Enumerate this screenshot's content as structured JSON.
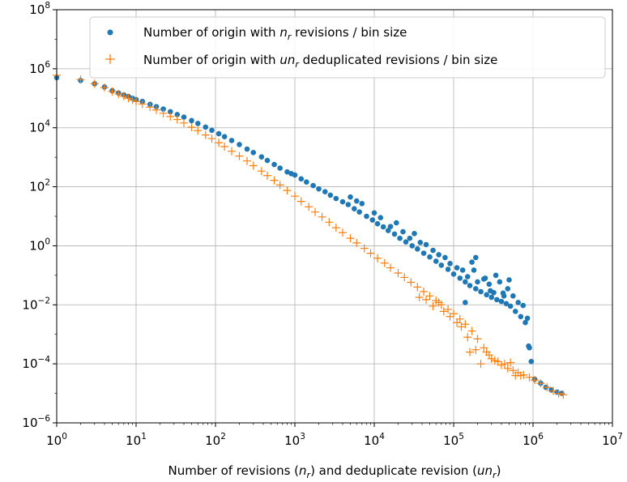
{
  "chart_data": {
    "type": "scatter",
    "xlabel": {
      "pre": "Number of revisions (",
      "var1": "n",
      "sub1": "r",
      "mid": ") and deduplicate revision (",
      "var2": "un",
      "sub2": "r",
      "post": ")"
    },
    "ylabel": "",
    "title": "",
    "x_scale": "log",
    "y_scale": "log",
    "xlim": [
      1,
      10000000
    ],
    "ylim": [
      1e-06,
      100000000
    ],
    "x_ticks": [
      {
        "base": "10",
        "exp": "0"
      },
      {
        "base": "10",
        "exp": "1"
      },
      {
        "base": "10",
        "exp": "2"
      },
      {
        "base": "10",
        "exp": "3"
      },
      {
        "base": "10",
        "exp": "4"
      },
      {
        "base": "10",
        "exp": "5"
      },
      {
        "base": "10",
        "exp": "6"
      },
      {
        "base": "10",
        "exp": "7"
      }
    ],
    "y_ticks": [
      {
        "base": "10",
        "exp": "−6"
      },
      {
        "base": "10",
        "exp": "−4"
      },
      {
        "base": "10",
        "exp": "−2"
      },
      {
        "base": "10",
        "exp": "0"
      },
      {
        "base": "10",
        "exp": "2"
      },
      {
        "base": "10",
        "exp": "4"
      },
      {
        "base": "10",
        "exp": "6"
      },
      {
        "base": "10",
        "exp": "8"
      }
    ],
    "grid": true,
    "legend_position": "top-right",
    "series": [
      {
        "legend": {
          "pre": "Number of origin with ",
          "var": "n",
          "sub": "r",
          "post": " revisions / bin size"
        },
        "marker": "circle",
        "color": "#1f77b4",
        "points": [
          [
            1,
            500000
          ],
          [
            2,
            400000
          ],
          [
            3,
            310000
          ],
          [
            4,
            240000
          ],
          [
            5,
            180000
          ],
          [
            6,
            150000
          ],
          [
            7,
            130000
          ],
          [
            8,
            115000
          ],
          [
            9,
            100000
          ],
          [
            10,
            90000
          ],
          [
            12,
            78000
          ],
          [
            15,
            62000
          ],
          [
            18,
            52000
          ],
          [
            22,
            43000
          ],
          [
            27,
            35000
          ],
          [
            33,
            28000
          ],
          [
            40,
            23000
          ],
          [
            50,
            17500
          ],
          [
            60,
            14000
          ],
          [
            75,
            10500
          ],
          [
            90,
            8200
          ],
          [
            110,
            6300
          ],
          [
            130,
            5000
          ],
          [
            160,
            3700
          ],
          [
            200,
            2700
          ],
          [
            250,
            1900
          ],
          [
            300,
            1450
          ],
          [
            380,
            1030
          ],
          [
            450,
            780
          ],
          [
            550,
            570
          ],
          [
            650,
            430
          ],
          [
            800,
            320
          ],
          [
            900,
            280
          ],
          [
            1000,
            250
          ],
          [
            1200,
            185
          ],
          [
            1400,
            145
          ],
          [
            1700,
            110
          ],
          [
            2000,
            85
          ],
          [
            2400,
            68
          ],
          [
            2800,
            52
          ],
          [
            3300,
            40
          ],
          [
            4000,
            31
          ],
          [
            4700,
            25
          ],
          [
            5600,
            18
          ],
          [
            6500,
            14
          ],
          [
            8000,
            10
          ],
          [
            9500,
            7.5
          ],
          [
            11000,
            5.6
          ],
          [
            13000,
            4.4
          ],
          [
            15000,
            3.3
          ],
          [
            18000,
            2.5
          ],
          [
            21000,
            1.8
          ],
          [
            25000,
            1.35
          ],
          [
            30000,
            1.0
          ],
          [
            35000,
            0.78
          ],
          [
            42000,
            0.56
          ],
          [
            50000,
            0.42
          ],
          [
            60000,
            0.3
          ],
          [
            70000,
            0.22
          ],
          [
            85000,
            0.16
          ],
          [
            100000,
            0.11
          ],
          [
            120000,
            0.08
          ],
          [
            140000,
            0.06
          ],
          [
            160000,
            0.045
          ],
          [
            190000,
            0.035
          ],
          [
            220000,
            0.028
          ],
          [
            260000,
            0.022
          ],
          [
            300000,
            0.018
          ],
          [
            350000,
            0.015
          ],
          [
            400000,
            0.013
          ],
          [
            460000,
            0.011
          ],
          [
            520000,
            0.009
          ],
          [
            600000,
            0.006
          ],
          [
            700000,
            0.004
          ],
          [
            800000,
            0.0025
          ],
          [
            880000,
            0.0004
          ],
          [
            950000,
            0.00012
          ],
          [
            1050000,
            3e-05
          ],
          [
            1250000,
            2.2e-05
          ],
          [
            1450000,
            1.6e-05
          ],
          [
            1700000,
            1.3e-05
          ],
          [
            2000000,
            1.1e-05
          ],
          [
            2300000,
            1e-05
          ],
          [
            5000,
            45
          ],
          [
            6000,
            33
          ],
          [
            7000,
            27
          ],
          [
            10000,
            13
          ],
          [
            12000,
            9
          ],
          [
            16000,
            4.5
          ],
          [
            19000,
            6
          ],
          [
            23000,
            3
          ],
          [
            28000,
            1.8
          ],
          [
            32000,
            2.6
          ],
          [
            38000,
            1.3
          ],
          [
            45000,
            1.1
          ],
          [
            55000,
            0.7
          ],
          [
            65000,
            0.5
          ],
          [
            78000,
            0.4
          ],
          [
            90000,
            0.25
          ],
          [
            110000,
            0.18
          ],
          [
            130000,
            0.15
          ],
          [
            150000,
            0.09
          ],
          [
            170000,
            0.28
          ],
          [
            200000,
            0.06
          ],
          [
            240000,
            0.075
          ],
          [
            280000,
            0.05
          ],
          [
            320000,
            0.026
          ],
          [
            380000,
            0.06
          ],
          [
            430000,
            0.02
          ],
          [
            480000,
            0.035
          ],
          [
            560000,
            0.02
          ],
          [
            650000,
            0.012
          ],
          [
            750000,
            0.0095
          ],
          [
            850000,
            0.0035
          ],
          [
            900000,
            0.00035
          ],
          [
            140000,
            0.012
          ],
          [
            180000,
            0.15
          ],
          [
            190000,
            0.4
          ],
          [
            250000,
            0.08
          ],
          [
            290000,
            0.03
          ],
          [
            340000,
            0.1
          ],
          [
            420000,
            0.025
          ],
          [
            500000,
            0.07
          ]
        ]
      },
      {
        "legend": {
          "pre": "Number of origin with ",
          "var": "un",
          "sub": "r",
          "post": " deduplicated revisions / bin size"
        },
        "marker": "plus",
        "color": "#ff7f0e",
        "points": [
          [
            1,
            600000
          ],
          [
            2,
            430000
          ],
          [
            3,
            310000
          ],
          [
            4,
            230000
          ],
          [
            5,
            170000
          ],
          [
            6,
            140000
          ],
          [
            7,
            118000
          ],
          [
            8,
            100000
          ],
          [
            9,
            88000
          ],
          [
            10,
            78000
          ],
          [
            12,
            64000
          ],
          [
            15,
            50000
          ],
          [
            18,
            40000
          ],
          [
            22,
            31000
          ],
          [
            27,
            24000
          ],
          [
            33,
            19000
          ],
          [
            40,
            14500
          ],
          [
            50,
            10500
          ],
          [
            60,
            8000
          ],
          [
            75,
            5700
          ],
          [
            90,
            4300
          ],
          [
            110,
            3100
          ],
          [
            130,
            2300
          ],
          [
            160,
            1600
          ],
          [
            200,
            1100
          ],
          [
            250,
            750
          ],
          [
            300,
            520
          ],
          [
            380,
            340
          ],
          [
            450,
            240
          ],
          [
            550,
            165
          ],
          [
            650,
            115
          ],
          [
            800,
            75
          ],
          [
            1000,
            48
          ],
          [
            1200,
            32
          ],
          [
            1500,
            21
          ],
          [
            1800,
            14
          ],
          [
            2200,
            9.5
          ],
          [
            2700,
            6.3
          ],
          [
            3300,
            4.1
          ],
          [
            4000,
            2.8
          ],
          [
            5000,
            1.8
          ],
          [
            6000,
            1.25
          ],
          [
            7500,
            0.82
          ],
          [
            9000,
            0.56
          ],
          [
            11000,
            0.38
          ],
          [
            13500,
            0.26
          ],
          [
            16000,
            0.18
          ],
          [
            20000,
            0.12
          ],
          [
            24000,
            0.085
          ],
          [
            29000,
            0.058
          ],
          [
            35000,
            0.04
          ],
          [
            42000,
            0.028
          ],
          [
            50000,
            0.02
          ],
          [
            60000,
            0.014
          ],
          [
            70000,
            0.01
          ],
          [
            85000,
            0.007
          ],
          [
            100000,
            0.005
          ],
          [
            120000,
            0.0033
          ],
          [
            140000,
            0.0022
          ],
          [
            170000,
            0.0013
          ],
          [
            200000,
            0.0007
          ],
          [
            240000,
            0.00035
          ],
          [
            280000,
            0.0002
          ],
          [
            330000,
            0.00013
          ],
          [
            400000,
            9e-05
          ],
          [
            480000,
            7e-05
          ],
          [
            560000,
            6e-05
          ],
          [
            650000,
            5e-05
          ],
          [
            760000,
            4.2e-05
          ],
          [
            900000,
            3.5e-05
          ],
          [
            1050000,
            2.8e-05
          ],
          [
            1250000,
            2.2e-05
          ],
          [
            1500000,
            1.6e-05
          ],
          [
            1800000,
            1.2e-05
          ],
          [
            2100000,
            1e-05
          ],
          [
            2400000,
            9e-06
          ],
          [
            37000,
            0.018
          ],
          [
            45000,
            0.015
          ],
          [
            55000,
            0.009
          ],
          [
            65000,
            0.012
          ],
          [
            75000,
            0.006
          ],
          [
            90000,
            0.004
          ],
          [
            110000,
            0.0025
          ],
          [
            125000,
            0.0018
          ],
          [
            150000,
            0.0008
          ],
          [
            160000,
            0.00025
          ],
          [
            190000,
            0.0003
          ],
          [
            220000,
            0.0001
          ],
          [
            260000,
            0.00025
          ],
          [
            300000,
            0.00015
          ],
          [
            360000,
            0.00012
          ],
          [
            440000,
            0.0001
          ],
          [
            520000,
            0.00011
          ],
          [
            600000,
            4e-05
          ],
          [
            700000,
            4e-05
          ]
        ]
      }
    ]
  }
}
